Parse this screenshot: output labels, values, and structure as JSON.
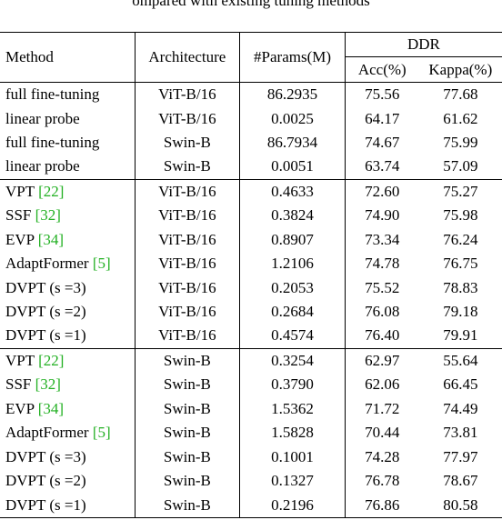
{
  "caption_fragment": "ompared with existing tuning methods",
  "header": {
    "method": "Method",
    "architecture": "Architecture",
    "params": "#Params(M)",
    "ddr": "DDR",
    "acc": "Acc(%)",
    "kappa": "Kappa(%)"
  },
  "groups": [
    {
      "rows": [
        {
          "method": "full fine-tuning",
          "ref": "",
          "arch": "ViT-B/16",
          "params": "86.2935",
          "acc": "75.56",
          "kappa": "77.68",
          "bold": false
        },
        {
          "method": "linear probe",
          "ref": "",
          "arch": "ViT-B/16",
          "params": "0.0025",
          "acc": "64.17",
          "kappa": "61.62",
          "bold": false
        },
        {
          "method": "full fine-tuning",
          "ref": "",
          "arch": "Swin-B",
          "params": "86.7934",
          "acc": "74.67",
          "kappa": "75.99",
          "bold": false
        },
        {
          "method": "linear probe",
          "ref": "",
          "arch": "Swin-B",
          "params": "0.0051",
          "acc": "63.74",
          "kappa": "57.09",
          "bold": false
        }
      ]
    },
    {
      "rows": [
        {
          "method": "VPT ",
          "ref": "[22]",
          "arch": "ViT-B/16",
          "params": "0.4633",
          "acc": "72.60",
          "kappa": "75.27",
          "bold": false
        },
        {
          "method": "SSF ",
          "ref": "[32]",
          "arch": "ViT-B/16",
          "params": "0.3824",
          "acc": "74.90",
          "kappa": "75.98",
          "bold": false
        },
        {
          "method": "EVP ",
          "ref": "[34]",
          "arch": "ViT-B/16",
          "params": "0.8907",
          "acc": "73.34",
          "kappa": "76.24",
          "bold": false
        },
        {
          "method": "AdaptFormer ",
          "ref": "[5]",
          "arch": "ViT-B/16",
          "params": "1.2106",
          "acc": "74.78",
          "kappa": "76.75",
          "bold": false
        },
        {
          "method": "DVPT (s =3)",
          "ref": "",
          "arch": "ViT-B/16",
          "params": "0.2053",
          "acc": "75.52",
          "kappa": "78.83",
          "bold": false
        },
        {
          "method": "DVPT (s =2)",
          "ref": "",
          "arch": "ViT-B/16",
          "params": "0.2684",
          "acc": "76.08",
          "kappa": "79.18",
          "bold": false
        },
        {
          "method": "DVPT (s =1)",
          "ref": "",
          "arch": "ViT-B/16",
          "params": "0.4574",
          "acc": "76.40",
          "kappa": "79.91",
          "bold": true
        }
      ]
    },
    {
      "rows": [
        {
          "method": "VPT ",
          "ref": "[22]",
          "arch": "Swin-B",
          "params": "0.3254",
          "acc": "62.97",
          "kappa": "55.64",
          "bold": false
        },
        {
          "method": "SSF ",
          "ref": "[32]",
          "arch": "Swin-B",
          "params": "0.3790",
          "acc": "62.06",
          "kappa": "66.45",
          "bold": false
        },
        {
          "method": "EVP ",
          "ref": "[34]",
          "arch": "Swin-B",
          "params": "1.5362",
          "acc": "71.72",
          "kappa": "74.49",
          "bold": false
        },
        {
          "method": "AdaptFormer ",
          "ref": "[5]",
          "arch": "Swin-B",
          "params": "1.5828",
          "acc": "70.44",
          "kappa": "73.81",
          "bold": false
        },
        {
          "method": "DVPT (s =3)",
          "ref": "",
          "arch": "Swin-B",
          "params": "0.1001",
          "acc": "74.28",
          "kappa": "77.97",
          "bold": false
        },
        {
          "method": "DVPT (s =2)",
          "ref": "",
          "arch": "Swin-B",
          "params": "0.1327",
          "acc": "76.78",
          "kappa": "78.67",
          "bold": false
        },
        {
          "method": "DVPT (s =1)",
          "ref": "",
          "arch": "Swin-B",
          "params": "0.2196",
          "acc": "76.86",
          "kappa": "80.58",
          "bold": true
        }
      ]
    }
  ],
  "colors": {
    "reference_link": "#22b022",
    "text": "#000000",
    "background": "#ffffff"
  }
}
